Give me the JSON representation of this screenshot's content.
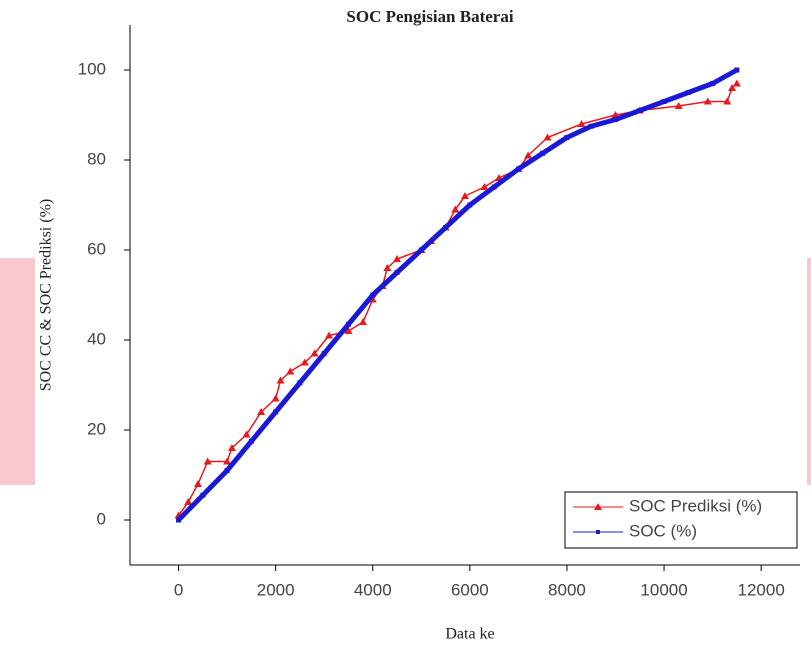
{
  "chart_data": {
    "type": "line",
    "title": "SOC Pengisian Baterai",
    "x_label": "Data ke",
    "y_label": "SOC CC & SOC Prediksi (%)",
    "xlim": [
      -1000,
      12800
    ],
    "xticks": [
      0,
      2000,
      4000,
      6000,
      8000,
      10000,
      12000
    ],
    "ylim": [
      -10,
      110
    ],
    "yticks": [
      0,
      20,
      40,
      60,
      80,
      100
    ],
    "legend": "lower right",
    "series": [
      {
        "name": "SOC Prediksi (%)",
        "color": "#e8191c",
        "marker": "triangle",
        "x": [
          0,
          200,
          400,
          600,
          1000,
          1100,
          1400,
          1700,
          2000,
          2100,
          2300,
          2600,
          2800,
          3100,
          3500,
          3800,
          4000,
          4200,
          4300,
          4500,
          5000,
          5200,
          5500,
          5700,
          5900,
          6300,
          6600,
          7000,
          7200,
          7600,
          8300,
          9000,
          9500,
          10300,
          10900,
          11300,
          11400,
          11500
        ],
        "values": [
          1,
          4,
          8,
          13,
          13,
          16,
          19,
          24,
          27,
          31,
          33,
          35,
          37,
          41,
          42,
          44,
          49,
          52,
          56,
          58,
          60,
          62,
          65,
          69,
          72,
          74,
          76,
          78,
          81,
          85,
          88,
          90,
          91,
          92,
          93,
          93,
          96,
          97
        ]
      },
      {
        "name": "SOC (%)",
        "color": "#1a1ad6",
        "marker": "square",
        "x": [
          0,
          500,
          1000,
          1500,
          2000,
          2500,
          3000,
          3500,
          4000,
          4500,
          5000,
          5500,
          6000,
          6500,
          7000,
          7500,
          8000,
          8500,
          9000,
          9500,
          10000,
          10500,
          11000,
          11500
        ],
        "values": [
          0,
          5.5,
          11,
          17.5,
          24,
          30.5,
          37,
          43.5,
          50,
          55,
          60,
          65,
          70,
          74,
          78,
          81.5,
          85,
          87.5,
          89,
          91,
          93,
          95,
          97,
          100
        ]
      }
    ]
  }
}
